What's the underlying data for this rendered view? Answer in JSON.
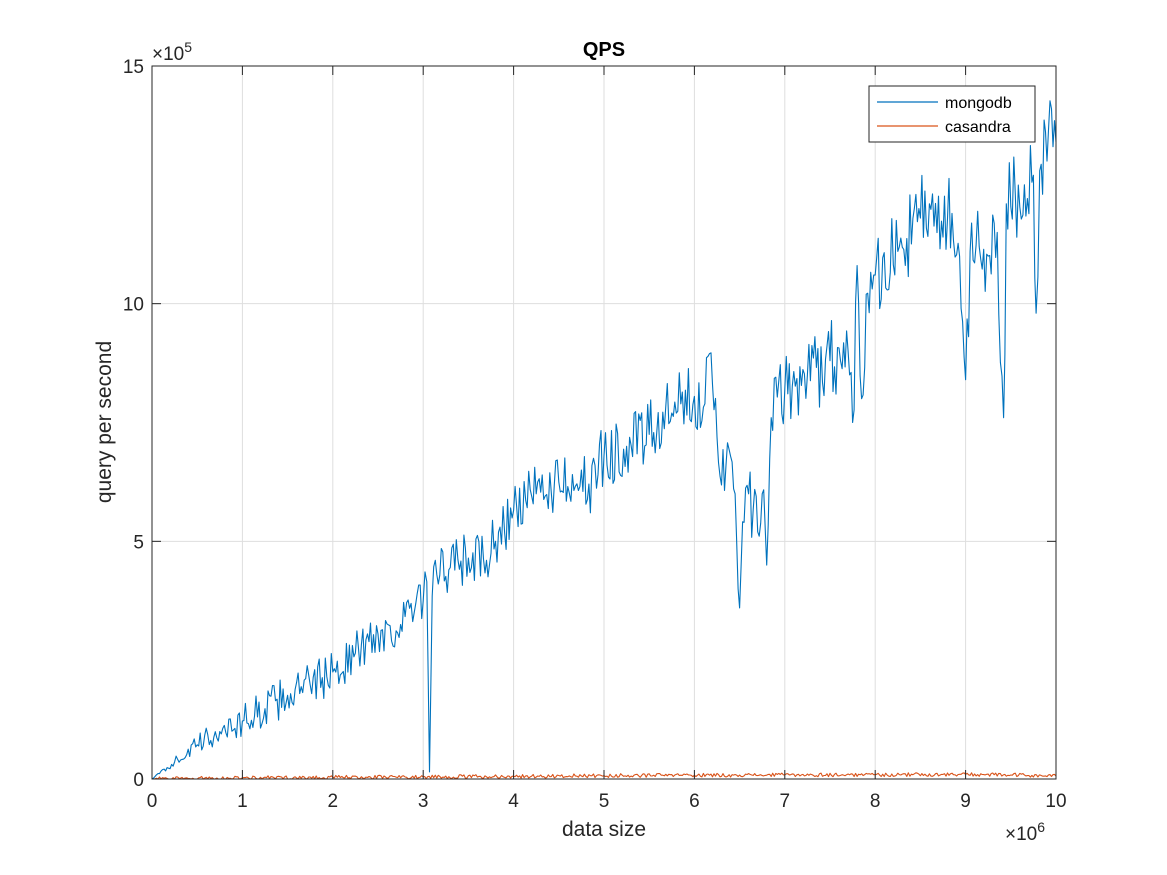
{
  "chart_data": {
    "type": "line",
    "title": "QPS",
    "xlabel": "data size",
    "ylabel": "query per second",
    "xlim": [
      0,
      10
    ],
    "ylim": [
      0,
      15
    ],
    "x_multiplier": "×10",
    "x_exponent": "6",
    "y_multiplier": "×10",
    "y_exponent": "5",
    "x_ticks": [
      "0",
      "1",
      "2",
      "3",
      "4",
      "5",
      "6",
      "7",
      "8",
      "9",
      "10"
    ],
    "y_ticks": [
      "0",
      "5",
      "10",
      "15"
    ],
    "grid": true,
    "legend_position": "top-right",
    "series": [
      {
        "name": "mongodb",
        "color": "#0072BD",
        "x": [
          0,
          0.25,
          0.5,
          0.75,
          1.0,
          1.25,
          1.5,
          1.75,
          2.0,
          2.25,
          2.5,
          2.75,
          3.0,
          3.04,
          3.07,
          3.1,
          3.15,
          3.3,
          3.5,
          3.7,
          3.8,
          4.0,
          4.25,
          4.5,
          4.75,
          4.85,
          4.9,
          5.0,
          5.25,
          5.5,
          5.75,
          6.0,
          6.2,
          6.25,
          6.35,
          6.45,
          6.5,
          6.55,
          6.6,
          6.7,
          6.75,
          6.8,
          6.85,
          7.0,
          7.25,
          7.5,
          7.7,
          7.75,
          7.8,
          7.85,
          7.9,
          8.0,
          8.25,
          8.5,
          8.6,
          8.75,
          8.85,
          8.95,
          9.0,
          9.05,
          9.15,
          9.25,
          9.35,
          9.42,
          9.45,
          9.55,
          9.65,
          9.75,
          9.78,
          9.82,
          9.9,
          9.95,
          10.0
        ],
        "y": [
          0,
          3.6,
          7.2,
          10.0,
          12.2,
          14.8,
          17.6,
          19.8,
          22.5,
          26.5,
          30.5,
          32.5,
          37.5,
          41.5,
          1.5,
          38.5,
          43.0,
          44.5,
          46.5,
          46.0,
          50.0,
          56.5,
          60.0,
          62.5,
          65.0,
          56.0,
          66.0,
          68.0,
          70.0,
          72.5,
          77.0,
          80.5,
          83.0,
          72.0,
          66.0,
          60.0,
          36.0,
          54.0,
          60.0,
          52.0,
          60.0,
          45.0,
          76.0,
          82.0,
          85.0,
          88.0,
          90.0,
          75.0,
          108.0,
          80.0,
          102.0,
          106.0,
          111.0,
          118.0,
          121.0,
          114.0,
          119.0,
          99.0,
          84.0,
          111.0,
          112.0,
          110.0,
          115.0,
          76.0,
          121.0,
          123.0,
          125.0,
          127.0,
          98.0,
          128.0,
          130.0,
          141.0,
          134.0
        ]
      },
      {
        "name": "casandra",
        "color": "#D95319",
        "x": [
          0,
          1,
          2,
          3,
          4,
          5,
          6,
          7,
          8,
          9,
          9.5,
          10
        ],
        "y": [
          0,
          0.25,
          0.35,
          0.45,
          0.55,
          0.7,
          0.8,
          0.85,
          0.9,
          0.95,
          0.85,
          0.6
        ]
      }
    ]
  }
}
